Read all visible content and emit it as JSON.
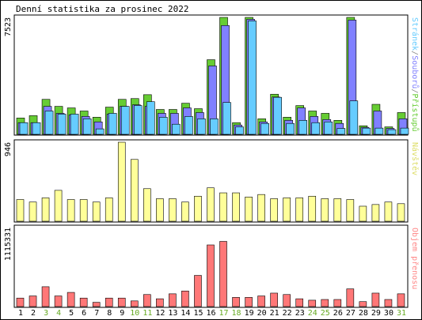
{
  "title": "Denní statistika za prosinec 2022",
  "panels": [
    {
      "key": "hits",
      "max_label": "7523",
      "side_label": [
        {
          "text": "Stránek",
          "color": "#66ccff"
        },
        {
          "text": "/",
          "color": "#888888"
        },
        {
          "text": "Souborů",
          "color": "#8080ff"
        },
        {
          "text": "/",
          "color": "#888888"
        },
        {
          "text": "Přístupů",
          "color": "#66cc33"
        }
      ]
    },
    {
      "key": "visits",
      "max_label": "946",
      "side_label": [
        {
          "text": "Návštěv",
          "color": "#dddd66"
        }
      ]
    },
    {
      "key": "bytes",
      "max_label": "1115331",
      "side_label": [
        {
          "text": "Objem přenosu",
          "color": "#ff8888"
        }
      ]
    }
  ],
  "colors": {
    "hits": "#66cc33",
    "files": "#8080ff",
    "pages": "#66ccff",
    "visits": "#ffff99",
    "bytes": "#ff7777",
    "weekend_day": "#66aa22"
  },
  "chart_data": {
    "type": "bar",
    "x": [
      1,
      2,
      3,
      4,
      5,
      6,
      7,
      8,
      9,
      10,
      11,
      12,
      13,
      14,
      15,
      16,
      17,
      18,
      19,
      20,
      21,
      22,
      23,
      24,
      25,
      26,
      27,
      28,
      29,
      30,
      31
    ],
    "weekend_days": [
      3,
      4,
      10,
      11,
      17,
      18,
      24,
      25,
      31
    ],
    "series": [
      {
        "name": "Přístupů",
        "panel": 0,
        "values": [
          1050,
          1200,
          2250,
          1800,
          1700,
          1500,
          1100,
          1750,
          2250,
          2300,
          2550,
          1600,
          1600,
          2000,
          1650,
          4800,
          7600,
          750,
          7523,
          1000,
          2580,
          1100,
          1850,
          1500,
          1350,
          900,
          7523,
          550,
          1930,
          480,
          1400
        ]
      },
      {
        "name": "Souborů",
        "panel": 0,
        "values": [
          750,
          750,
          1800,
          1350,
          1250,
          1150,
          800,
          1300,
          1800,
          1900,
          1800,
          1350,
          1350,
          1700,
          1400,
          4400,
          7000,
          600,
          7400,
          800,
          2400,
          900,
          1700,
          1150,
          950,
          700,
          7350,
          450,
          1500,
          380,
          1000
        ]
      },
      {
        "name": "Stránek",
        "panel": 0,
        "values": [
          750,
          750,
          1500,
          1300,
          1300,
          1000,
          350,
          1350,
          1800,
          1850,
          2100,
          1100,
          650,
          1150,
          1000,
          1000,
          2050,
          480,
          7300,
          700,
          2380,
          700,
          900,
          750,
          800,
          380,
          2150,
          400,
          400,
          300,
          400
        ]
      },
      {
        "name": "Návštěv",
        "panel": 1,
        "values": [
          260,
          230,
          280,
          370,
          260,
          260,
          230,
          280,
          946,
          740,
          390,
          270,
          270,
          230,
          300,
          400,
          340,
          340,
          290,
          320,
          270,
          280,
          280,
          300,
          270,
          270,
          260,
          180,
          200,
          230,
          210
        ]
      },
      {
        "name": "Objem přenosu",
        "panel": 2,
        "values": [
          120000,
          150000,
          280000,
          150000,
          200000,
          120000,
          60000,
          120000,
          120000,
          80000,
          170000,
          110000,
          180000,
          220000,
          440000,
          870000,
          920000,
          130000,
          130000,
          150000,
          190000,
          170000,
          110000,
          90000,
          100000,
          100000,
          250000,
          70000,
          190000,
          100000,
          180000
        ]
      }
    ],
    "panel_max": [
      7523,
      946,
      1115331
    ]
  }
}
